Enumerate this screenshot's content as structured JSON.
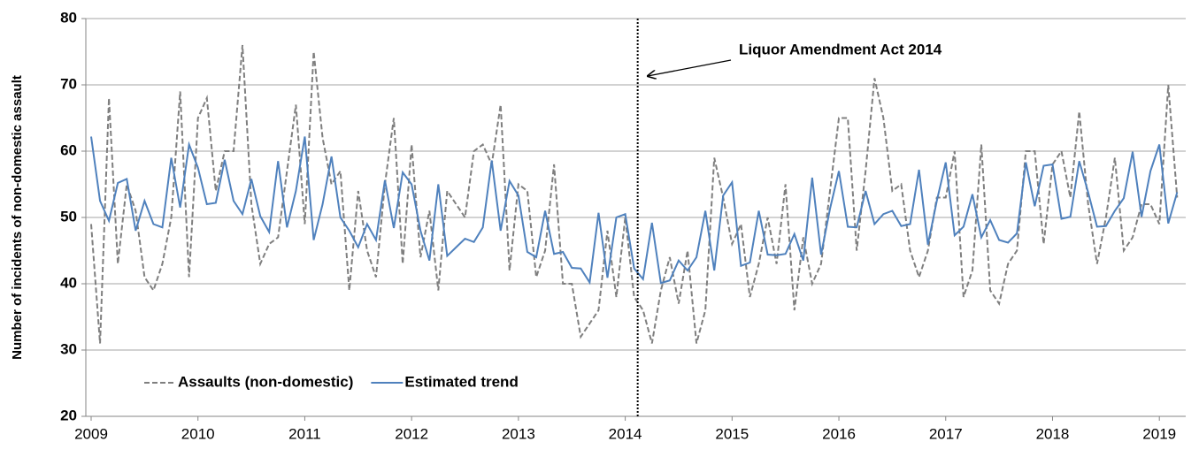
{
  "chart_data": {
    "type": "line",
    "y_label": "Number of incidents of non-domestic assault",
    "annotation": "Liquor Amendment Act 2014",
    "categories": [
      "2009",
      null,
      null,
      null,
      null,
      null,
      null,
      null,
      null,
      null,
      null,
      null,
      "2010",
      null,
      null,
      null,
      null,
      null,
      null,
      null,
      null,
      null,
      null,
      null,
      "2011",
      null,
      null,
      null,
      null,
      null,
      null,
      null,
      null,
      null,
      null,
      null,
      "2012",
      null,
      null,
      null,
      null,
      null,
      null,
      null,
      null,
      null,
      null,
      null,
      "2013",
      null,
      null,
      null,
      null,
      null,
      null,
      null,
      null,
      null,
      null,
      null,
      "2014",
      null,
      null,
      null,
      null,
      null,
      null,
      null,
      null,
      null,
      null,
      null,
      "2015",
      null,
      null,
      null,
      null,
      null,
      null,
      null,
      null,
      null,
      null,
      null,
      "2016",
      null,
      null,
      null,
      null,
      null,
      null,
      null,
      null,
      null,
      null,
      null,
      "2017",
      null,
      null,
      null,
      null,
      null,
      null,
      null,
      null,
      null,
      null,
      null,
      "2018",
      null,
      null,
      null,
      null,
      null,
      null,
      null,
      null,
      null,
      null,
      null,
      "2019",
      null,
      null
    ],
    "series": [
      {
        "name": "Assaults (non-domestic)",
        "color": "#7f7f7f",
        "dash": true,
        "values": [
          49,
          31,
          68,
          43,
          55,
          51,
          41,
          39,
          43,
          50,
          69,
          41,
          65,
          68,
          54,
          60,
          60,
          76,
          52,
          43,
          46,
          47,
          57,
          67,
          49,
          75,
          62,
          55,
          57,
          39,
          54,
          45,
          41,
          55,
          65,
          43,
          61,
          44,
          51,
          39,
          54,
          52,
          50,
          60,
          61,
          58,
          67,
          42,
          55,
          54,
          41,
          45,
          58,
          40,
          40,
          32,
          34,
          36,
          48,
          38,
          50,
          38,
          36,
          31,
          39,
          44,
          37,
          45,
          31,
          36,
          59,
          53,
          46,
          49,
          38,
          43,
          50,
          43,
          55,
          36,
          47,
          40,
          43,
          54,
          65,
          65,
          45,
          57,
          71,
          65,
          54,
          55,
          45,
          41,
          45,
          53,
          53,
          60,
          38,
          42,
          61,
          39,
          37,
          43,
          45,
          60,
          60,
          46,
          58,
          60,
          53,
          66,
          52,
          43,
          50,
          59,
          45,
          47,
          52,
          52,
          49,
          70,
          53
        ]
      },
      {
        "name": "Estimated trend",
        "color": "#4f81bd",
        "dash": false,
        "values": [
          62.2,
          52.5,
          49.5,
          55.2,
          55.8,
          48,
          52.5,
          49,
          48.5,
          59,
          51.5,
          61,
          57.5,
          52,
          52.2,
          58.7,
          52.5,
          50.5,
          55.8,
          50.2,
          47.8,
          58.5,
          48.5,
          54,
          62.2,
          46.6,
          52,
          59.2,
          50,
          48,
          45.5,
          49,
          46.6,
          55.6,
          48.4,
          56.8,
          55,
          48,
          43.5,
          55,
          44.2,
          45.5,
          46.8,
          46.3,
          48.5,
          58.6,
          48,
          55.5,
          53.3,
          44.8,
          44,
          51,
          44.5,
          44.8,
          42.4,
          42.3,
          40.2,
          50.7,
          40.9,
          50,
          50.5,
          42.3,
          40.7,
          49.2,
          40.1,
          40.5,
          43.5,
          42,
          44,
          51,
          42,
          53.3,
          55.3,
          42.7,
          43.2,
          51,
          44.4,
          44.3,
          44.5,
          47.5,
          43.5,
          56,
          44.4,
          51.3,
          57,
          48.6,
          48.5,
          54,
          49,
          50.5,
          51,
          48.7,
          49,
          57.2,
          45.9,
          52.5,
          58.3,
          47.3,
          48.6,
          53.5,
          47,
          49.6,
          46.6,
          46.2,
          47.6,
          58.3,
          51.7,
          57.8,
          58,
          49.8,
          50.1,
          58.5,
          53.8,
          48.6,
          48.7,
          51,
          52.9,
          59.9,
          50.1,
          57,
          61,
          49.1,
          53.8
        ]
      }
    ],
    "ylim": [
      20,
      80
    ],
    "yticks": [
      20,
      30,
      40,
      50,
      60,
      70,
      80
    ],
    "grid": true
  }
}
